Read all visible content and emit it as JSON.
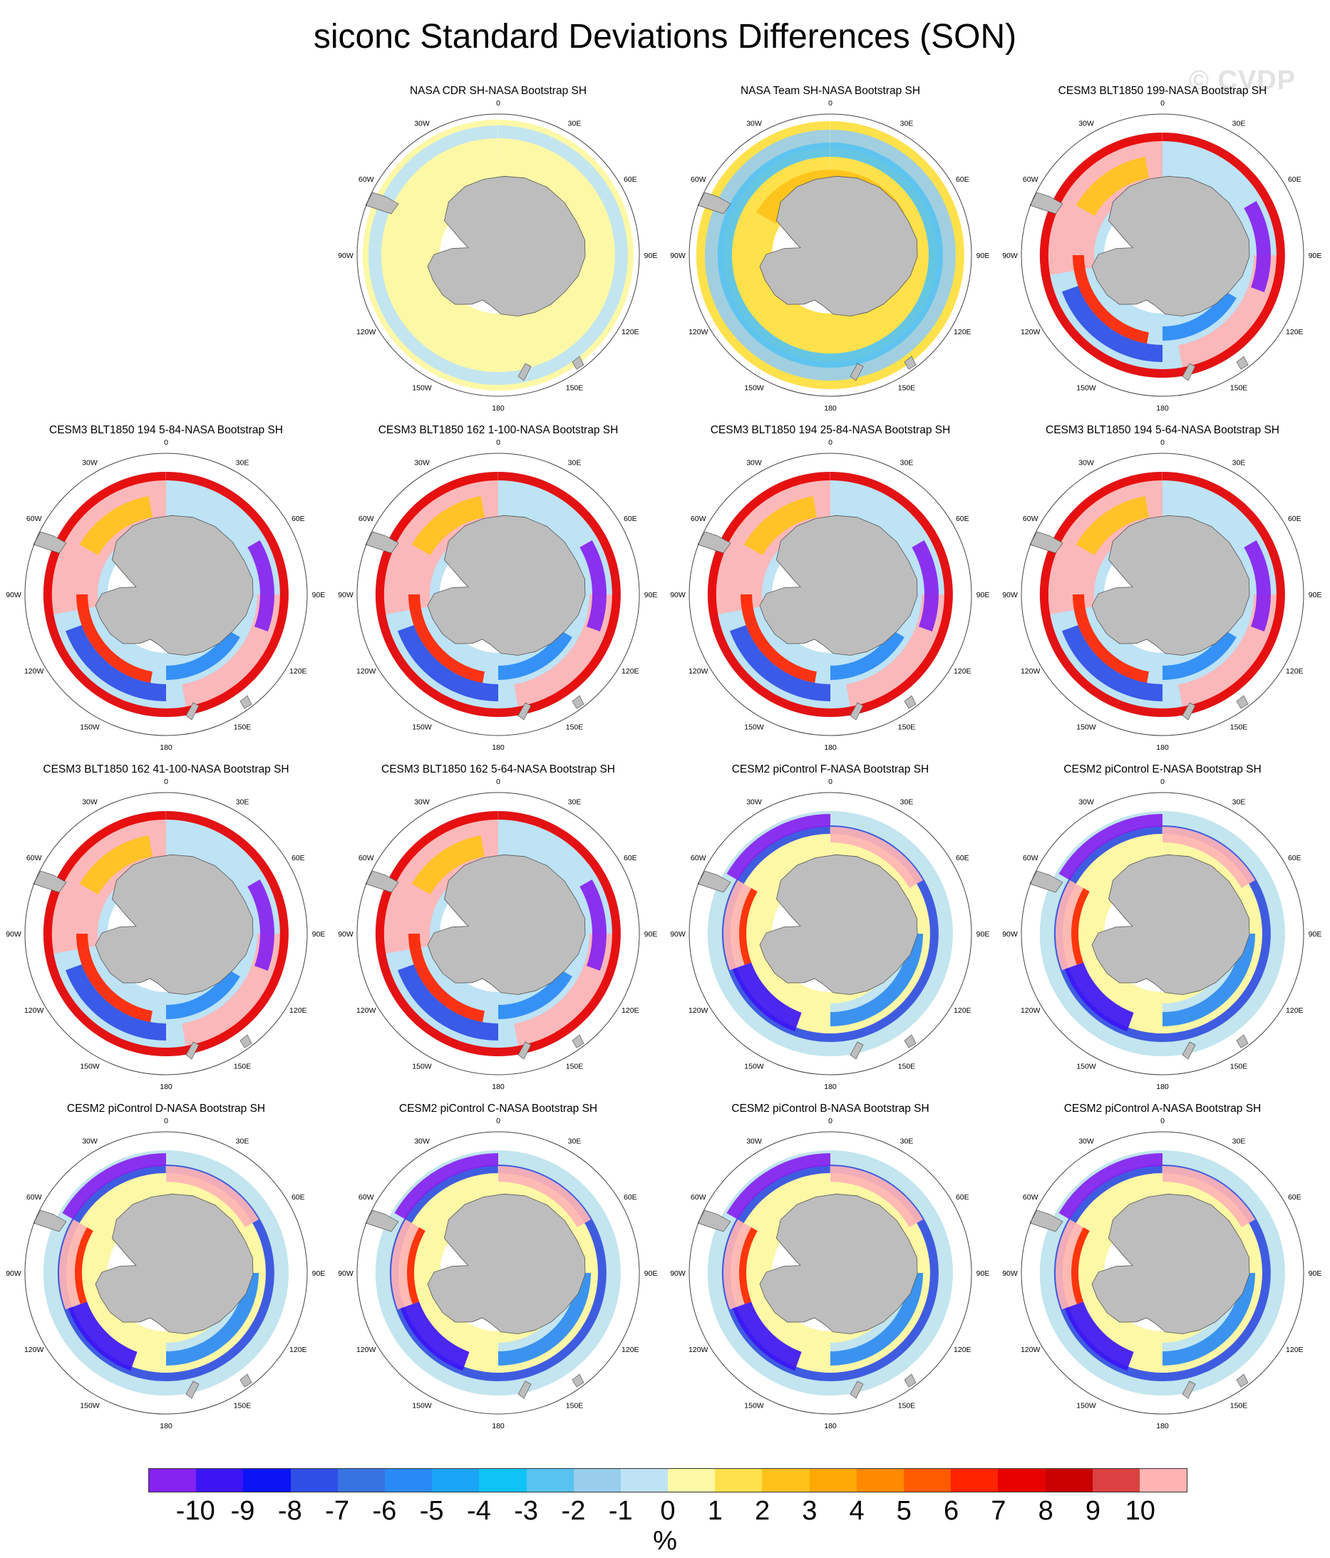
{
  "title": "siconc Standard Deviations Differences (SON)",
  "watermark": "© CVDP",
  "longitude_labels": [
    "0",
    "30E",
    "60E",
    "90E",
    "120E",
    "150E",
    "180",
    "150W",
    "120W",
    "90W",
    "60W",
    "30W"
  ],
  "panels": [
    {
      "title": "NASA CDR SH-NASA Bootstrap SH",
      "style": "cdr"
    },
    {
      "title": "NASA Team SH-NASA Bootstrap SH",
      "style": "team"
    },
    {
      "title": "CESM3 BLT1850 199-NASA Bootstrap SH",
      "style": "model"
    },
    {
      "title": "CESM3 BLT1850 194 5-84-NASA Bootstrap SH",
      "style": "model"
    },
    {
      "title": "CESM3 BLT1850 162 1-100-NASA Bootstrap SH",
      "style": "model"
    },
    {
      "title": "CESM3 BLT1850 194 25-84-NASA Bootstrap SH",
      "style": "model"
    },
    {
      "title": "CESM3 BLT1850 194 5-64-NASA Bootstrap SH",
      "style": "model"
    },
    {
      "title": "CESM3 BLT1850 162 41-100-NASA Bootstrap SH",
      "style": "model"
    },
    {
      "title": "CESM3 BLT1850 162 5-64-NASA Bootstrap SH",
      "style": "model"
    },
    {
      "title": "CESM2 piControl F-NASA Bootstrap SH",
      "style": "cesm2"
    },
    {
      "title": "CESM2 piControl E-NASA Bootstrap SH",
      "style": "cesm2"
    },
    {
      "title": "CESM2 piControl D-NASA Bootstrap SH",
      "style": "cesm2"
    },
    {
      "title": "CESM2 piControl C-NASA Bootstrap SH",
      "style": "cesm2"
    },
    {
      "title": "CESM2 piControl B-NASA Bootstrap SH",
      "style": "cesm2"
    },
    {
      "title": "CESM2 piControl A-NASA Bootstrap SH",
      "style": "cesm2"
    }
  ],
  "colorbar": {
    "colors": [
      "#8522ef",
      "#3c15f5",
      "#0a14f5",
      "#2f4ee6",
      "#3774e2",
      "#2a8af5",
      "#1aa4f5",
      "#0ec3f5",
      "#58c3f0",
      "#99cdec",
      "#bde3f5",
      "#fdf8a6",
      "#ffe14c",
      "#ffc21a",
      "#ffa906",
      "#ff8a00",
      "#ff5a00",
      "#ff2400",
      "#e60000",
      "#c80000",
      "#dc4040",
      "#ffb4b4"
    ],
    "labels": [
      "-10",
      "-9",
      "-8",
      "-7",
      "-6",
      "-5",
      "-4",
      "-3",
      "-2",
      "-1",
      "0",
      "1",
      "2",
      "3",
      "4",
      "5",
      "6",
      "7",
      "8",
      "9",
      "10"
    ],
    "units": "%"
  }
}
